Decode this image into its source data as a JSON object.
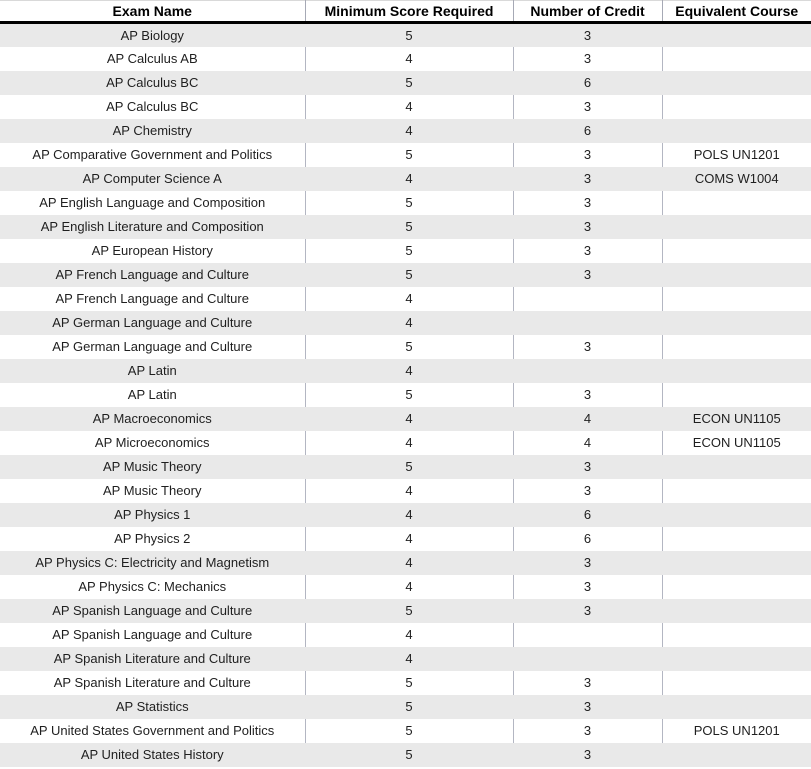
{
  "table": {
    "columns": [
      "Exam Name",
      "Minimum Score Required",
      "Number of Credit",
      "Equivalent Course"
    ],
    "rows": [
      {
        "exam": "AP Biology",
        "min_score": "5",
        "credits": "3",
        "course": ""
      },
      {
        "exam": "AP Calculus AB",
        "min_score": "4",
        "credits": "3",
        "course": ""
      },
      {
        "exam": "AP Calculus BC",
        "min_score": "5",
        "credits": "6",
        "course": ""
      },
      {
        "exam": "AP Calculus BC",
        "min_score": "4",
        "credits": "3",
        "course": ""
      },
      {
        "exam": "AP Chemistry",
        "min_score": "4",
        "credits": "6",
        "course": ""
      },
      {
        "exam": "AP Comparative Government and Politics",
        "min_score": "5",
        "credits": "3",
        "course": "POLS UN1201"
      },
      {
        "exam": "AP Computer Science A",
        "min_score": "4",
        "credits": "3",
        "course": "COMS W1004"
      },
      {
        "exam": "AP English Language and Composition",
        "min_score": "5",
        "credits": "3",
        "course": ""
      },
      {
        "exam": "AP English Literature and Composition",
        "min_score": "5",
        "credits": "3",
        "course": ""
      },
      {
        "exam": "AP European History",
        "min_score": "5",
        "credits": "3",
        "course": ""
      },
      {
        "exam": "AP French Language and Culture",
        "min_score": "5",
        "credits": "3",
        "course": ""
      },
      {
        "exam": "AP French Language and Culture",
        "min_score": "4",
        "credits": "",
        "course": ""
      },
      {
        "exam": "AP German Language and Culture",
        "min_score": "4",
        "credits": "",
        "course": ""
      },
      {
        "exam": "AP German Language and Culture",
        "min_score": "5",
        "credits": "3",
        "course": ""
      },
      {
        "exam": "AP Latin",
        "min_score": "4",
        "credits": "",
        "course": ""
      },
      {
        "exam": "AP Latin",
        "min_score": "5",
        "credits": "3",
        "course": ""
      },
      {
        "exam": "AP Macroeconomics",
        "min_score": "4",
        "credits": "4",
        "course": "ECON UN1105"
      },
      {
        "exam": "AP Microeconomics",
        "min_score": "4",
        "credits": "4",
        "course": "ECON UN1105"
      },
      {
        "exam": "AP Music Theory",
        "min_score": "5",
        "credits": "3",
        "course": ""
      },
      {
        "exam": "AP Music Theory",
        "min_score": "4",
        "credits": "3",
        "course": ""
      },
      {
        "exam": "AP Physics 1",
        "min_score": "4",
        "credits": "6",
        "course": ""
      },
      {
        "exam": "AP Physics 2",
        "min_score": "4",
        "credits": "6",
        "course": ""
      },
      {
        "exam": "AP Physics C: Electricity and Magnetism",
        "min_score": "4",
        "credits": "3",
        "course": ""
      },
      {
        "exam": "AP Physics C: Mechanics",
        "min_score": "4",
        "credits": "3",
        "course": ""
      },
      {
        "exam": "AP Spanish Language and Culture",
        "min_score": "5",
        "credits": "3",
        "course": ""
      },
      {
        "exam": "AP Spanish Language and Culture",
        "min_score": "4",
        "credits": "",
        "course": ""
      },
      {
        "exam": "AP Spanish Literature and Culture",
        "min_score": "4",
        "credits": "",
        "course": ""
      },
      {
        "exam": "AP Spanish Literature and Culture",
        "min_score": "5",
        "credits": "3",
        "course": ""
      },
      {
        "exam": "AP Statistics",
        "min_score": "5",
        "credits": "3",
        "course": ""
      },
      {
        "exam": "AP United States Government and Politics",
        "min_score": "5",
        "credits": "3",
        "course": "POLS UN1201"
      },
      {
        "exam": "AP United States History",
        "min_score": "5",
        "credits": "3",
        "course": ""
      }
    ]
  },
  "colors": {
    "stripe_row_background": "#e9e9e9",
    "header_bottom_border": "#000000",
    "gridline": "#b3b6c2",
    "body_text": "#1f1f1f",
    "header_text": "#000000"
  }
}
